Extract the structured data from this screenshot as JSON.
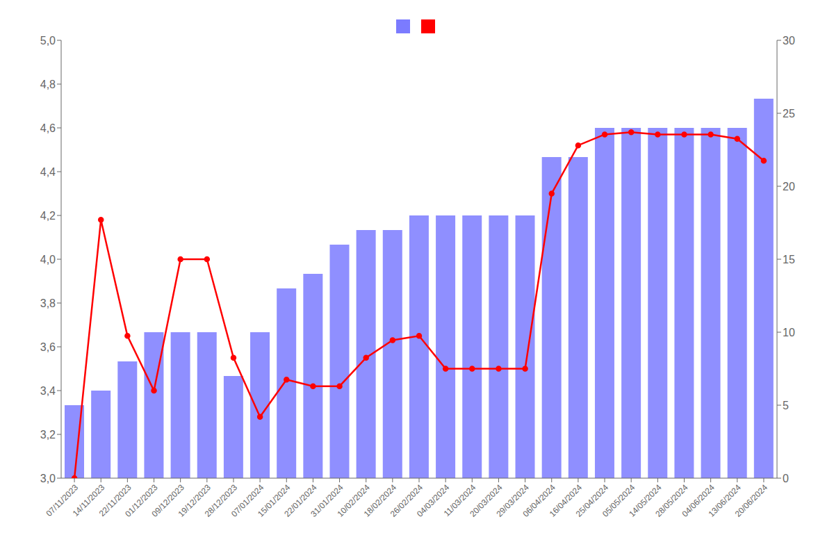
{
  "chart_data": {
    "type": "bar",
    "categories": [
      "07/11/2023",
      "14/11/2023",
      "22/11/2023",
      "01/12/2023",
      "09/12/2023",
      "19/12/2023",
      "28/12/2023",
      "07/01/2024",
      "15/01/2024",
      "22/01/2024",
      "31/01/2024",
      "10/02/2024",
      "18/02/2024",
      "26/02/2024",
      "04/03/2024",
      "11/03/2024",
      "20/03/2024",
      "29/03/2024",
      "06/04/2024",
      "16/04/2024",
      "25/04/2024",
      "05/05/2024",
      "14/05/2024",
      "28/05/2024",
      "04/06/2024",
      "13/06/2024",
      "20/06/2024"
    ],
    "series": [
      {
        "type": "bar",
        "axis": "y2",
        "color": "#7b7bff",
        "values": [
          5,
          6,
          8,
          10,
          10,
          10,
          7,
          10,
          13,
          14,
          16,
          17,
          17,
          18,
          18,
          18,
          18,
          18,
          22,
          22,
          24,
          24,
          24,
          24,
          24,
          24,
          26
        ]
      },
      {
        "type": "line",
        "color": "#ff0000",
        "marker": "circle",
        "line_style": "solid",
        "values": [
          3.0,
          4.18,
          3.65,
          3.4,
          4.0,
          4.0,
          3.55,
          3.28,
          3.45,
          3.42,
          3.42,
          3.55,
          3.63,
          3.65,
          3.5,
          3.5,
          3.5,
          3.5,
          4.3,
          4.52,
          4.57,
          4.58,
          4.57,
          4.57,
          4.57,
          4.55,
          4.45
        ]
      }
    ],
    "ylim": [
      3.0,
      5.0
    ],
    "yticks": [
      {
        "value": 3.0,
        "label": "3,0"
      },
      {
        "value": 3.2,
        "label": "3,2"
      },
      {
        "value": 3.4,
        "label": "3,4"
      },
      {
        "value": 3.6,
        "label": "3,6"
      },
      {
        "value": 3.8,
        "label": "3,8"
      },
      {
        "value": 4.0,
        "label": "4,0"
      },
      {
        "value": 4.2,
        "label": "4,2"
      },
      {
        "value": 4.4,
        "label": "4,4"
      },
      {
        "value": 4.6,
        "label": "4,6"
      },
      {
        "value": 4.8,
        "label": "4,8"
      },
      {
        "value": 5.0,
        "label": "5,0"
      }
    ],
    "y2lim": [
      0,
      30
    ],
    "y2ticks": [
      0,
      5,
      10,
      15,
      20,
      25,
      30
    ],
    "grid": false,
    "legend": "top"
  }
}
